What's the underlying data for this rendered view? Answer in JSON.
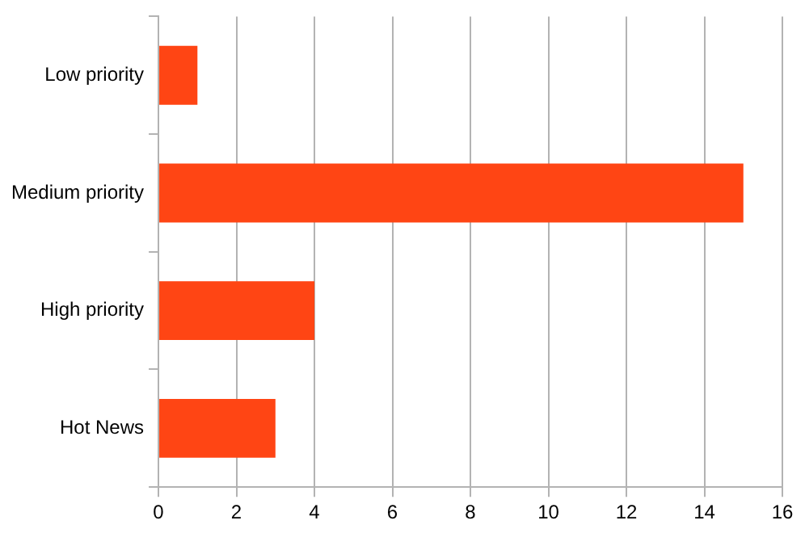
{
  "chart_data": {
    "type": "bar",
    "orientation": "horizontal",
    "categories": [
      "Low priority",
      "Medium priority",
      "High priority",
      "Hot News"
    ],
    "values": [
      1,
      15,
      4,
      3
    ],
    "color": "#ff4514",
    "xlim": [
      0,
      16
    ],
    "xticks": [
      0,
      2,
      4,
      6,
      8,
      10,
      12,
      14,
      16
    ],
    "grid": "x",
    "legend": false
  }
}
